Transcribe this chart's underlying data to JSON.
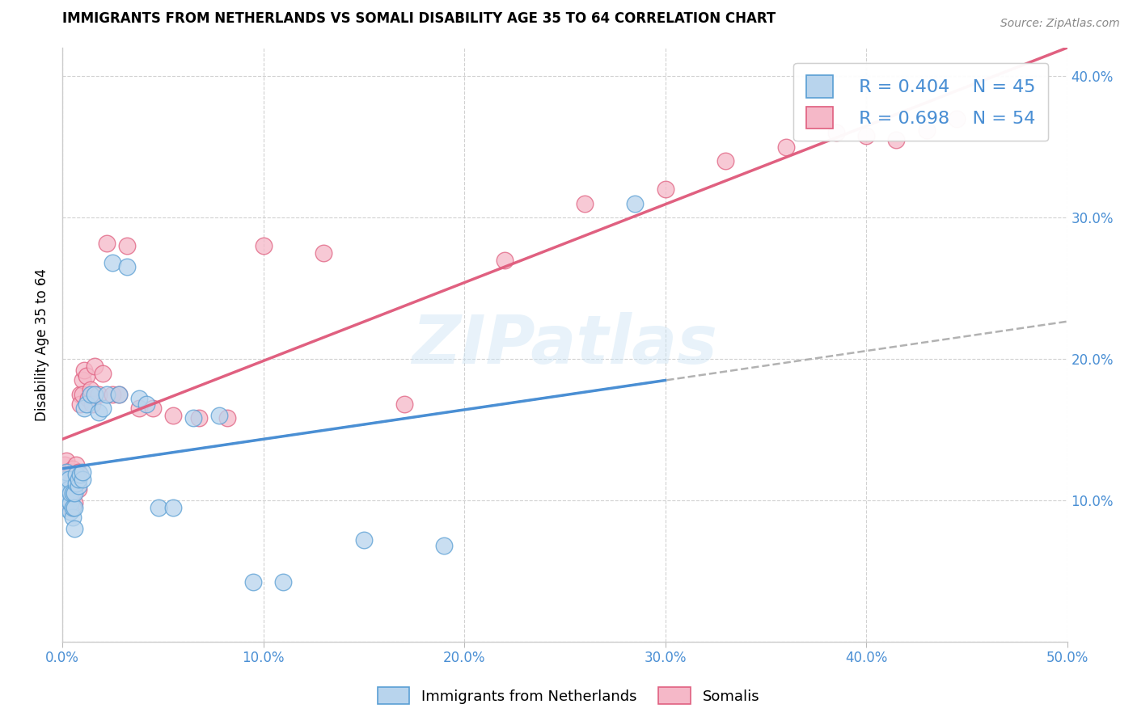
{
  "title": "IMMIGRANTS FROM NETHERLANDS VS SOMALI DISABILITY AGE 35 TO 64 CORRELATION CHART",
  "source": "Source: ZipAtlas.com",
  "ylabel": "Disability Age 35 to 64",
  "xlim": [
    0.0,
    0.5
  ],
  "ylim": [
    0.0,
    0.42
  ],
  "xticks": [
    0.0,
    0.1,
    0.2,
    0.3,
    0.4,
    0.5
  ],
  "yticks": [
    0.0,
    0.1,
    0.2,
    0.3,
    0.4
  ],
  "xticklabels": [
    "0.0%",
    "10.0%",
    "20.0%",
    "30.0%",
    "40.0%",
    "50.0%"
  ],
  "yticklabels": [
    "",
    "10.0%",
    "20.0%",
    "30.0%",
    "40.0%"
  ],
  "blue_fill": "#b8d4ed",
  "pink_fill": "#f5b8c8",
  "blue_edge": "#5a9fd4",
  "pink_edge": "#e06080",
  "blue_line": "#4a8fd4",
  "pink_line": "#e06080",
  "dashed_color": "#aaaaaa",
  "legend_R_blue": "R = 0.404",
  "legend_N_blue": "N = 45",
  "legend_R_pink": "R = 0.698",
  "legend_N_pink": "N = 54",
  "legend_label_blue": "Immigrants from Netherlands",
  "legend_label_pink": "Somalis",
  "watermark": "ZIPatlas",
  "blue_x": [
    0.001,
    0.001,
    0.002,
    0.002,
    0.002,
    0.003,
    0.003,
    0.003,
    0.004,
    0.004,
    0.004,
    0.005,
    0.005,
    0.005,
    0.006,
    0.006,
    0.006,
    0.007,
    0.007,
    0.008,
    0.008,
    0.009,
    0.01,
    0.01,
    0.011,
    0.012,
    0.014,
    0.016,
    0.018,
    0.02,
    0.022,
    0.025,
    0.028,
    0.032,
    0.038,
    0.042,
    0.048,
    0.055,
    0.065,
    0.078,
    0.095,
    0.11,
    0.15,
    0.19,
    0.285
  ],
  "blue_y": [
    0.095,
    0.11,
    0.105,
    0.115,
    0.12,
    0.1,
    0.108,
    0.115,
    0.092,
    0.098,
    0.105,
    0.088,
    0.095,
    0.105,
    0.08,
    0.095,
    0.105,
    0.112,
    0.118,
    0.11,
    0.115,
    0.118,
    0.115,
    0.12,
    0.165,
    0.168,
    0.175,
    0.175,
    0.162,
    0.165,
    0.175,
    0.268,
    0.175,
    0.265,
    0.172,
    0.168,
    0.095,
    0.095,
    0.158,
    0.16,
    0.042,
    0.042,
    0.072,
    0.068,
    0.31
  ],
  "pink_x": [
    0.001,
    0.001,
    0.002,
    0.002,
    0.002,
    0.003,
    0.003,
    0.003,
    0.004,
    0.004,
    0.004,
    0.005,
    0.005,
    0.005,
    0.006,
    0.006,
    0.007,
    0.007,
    0.008,
    0.008,
    0.009,
    0.009,
    0.01,
    0.01,
    0.011,
    0.012,
    0.013,
    0.014,
    0.015,
    0.016,
    0.018,
    0.02,
    0.022,
    0.025,
    0.028,
    0.032,
    0.038,
    0.045,
    0.055,
    0.068,
    0.082,
    0.1,
    0.13,
    0.17,
    0.22,
    0.26,
    0.3,
    0.33,
    0.36,
    0.385,
    0.4,
    0.415,
    0.43,
    0.445
  ],
  "pink_y": [
    0.115,
    0.125,
    0.108,
    0.118,
    0.128,
    0.102,
    0.112,
    0.12,
    0.095,
    0.11,
    0.118,
    0.105,
    0.115,
    0.122,
    0.098,
    0.112,
    0.118,
    0.125,
    0.108,
    0.12,
    0.175,
    0.168,
    0.185,
    0.175,
    0.192,
    0.188,
    0.172,
    0.178,
    0.168,
    0.195,
    0.175,
    0.19,
    0.282,
    0.175,
    0.175,
    0.28,
    0.165,
    0.165,
    0.16,
    0.158,
    0.158,
    0.28,
    0.275,
    0.168,
    0.27,
    0.31,
    0.32,
    0.34,
    0.35,
    0.36,
    0.358,
    0.355,
    0.362,
    0.37
  ]
}
